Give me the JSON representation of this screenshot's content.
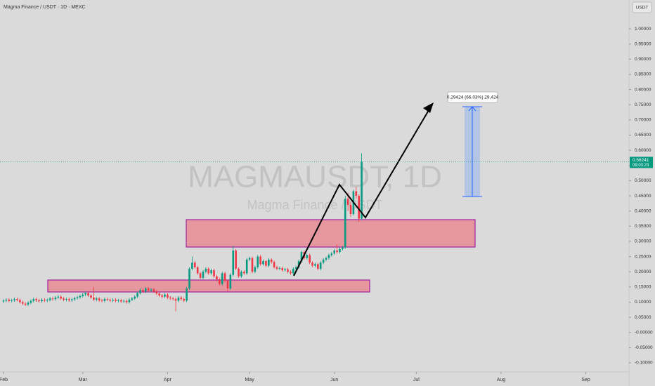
{
  "chart_data": {
    "type": "candlestick",
    "title": "Magma Finance / USDT · 1D · MEXC",
    "watermark": "MAGMAUSDT, 1D",
    "watermark_subtitle": "Magma Finance / USDT",
    "currency": "USDT",
    "measure_label": "0.29424 (66.03%) 29,424",
    "last_price": {
      "value": 0.56241,
      "label": "0.56241"
    },
    "countdown": "09:03:23",
    "up_color": "#089981",
    "down_color": "#f23645",
    "xlim": [
      -1.285,
      228.8
    ],
    "ylim": [
      -0.13,
      1.095
    ],
    "xticks": [
      {
        "value": 0,
        "label": "Feb"
      },
      {
        "value": 29,
        "label": "Mar"
      },
      {
        "value": 60,
        "label": "Apr"
      },
      {
        "value": 90,
        "label": "May"
      },
      {
        "value": 121,
        "label": "Jun"
      },
      {
        "value": 151,
        "label": "Jul"
      },
      {
        "value": 182,
        "label": "Aug"
      },
      {
        "value": 213,
        "label": "Sep"
      }
    ],
    "yticks": [
      {
        "value": 1.0,
        "label": "1.00000"
      },
      {
        "value": 0.95,
        "label": "0.95000"
      },
      {
        "value": 0.9,
        "label": "0.90000"
      },
      {
        "value": 0.85,
        "label": "0.85000"
      },
      {
        "value": 0.8,
        "label": "0.80000"
      },
      {
        "value": 0.75,
        "label": "0.75000"
      },
      {
        "value": 0.7,
        "label": "0.70000"
      },
      {
        "value": 0.65,
        "label": "0.65000"
      },
      {
        "value": 0.6,
        "label": "0.60000"
      },
      {
        "value": 0.55,
        "label": "0.55000"
      },
      {
        "value": 0.5,
        "label": "0.50000"
      },
      {
        "value": 0.45,
        "label": "0.45000"
      },
      {
        "value": 0.4,
        "label": "0.40000"
      },
      {
        "value": 0.35,
        "label": "0.35000"
      },
      {
        "value": 0.3,
        "label": "0.30000"
      },
      {
        "value": 0.25,
        "label": "0.25000"
      },
      {
        "value": 0.2,
        "label": "0.20000"
      },
      {
        "value": 0.15,
        "label": "0.15000"
      },
      {
        "value": 0.1,
        "label": "0.10000"
      },
      {
        "value": 0.05,
        "label": "0.05000"
      },
      {
        "value": 0,
        "label": "-0.00000"
      },
      {
        "value": -0.05,
        "label": "-0.05000"
      },
      {
        "value": -0.1,
        "label": "-0.10000"
      }
    ],
    "x": [
      0,
      1,
      2,
      3,
      4,
      5,
      6,
      7,
      8,
      9,
      10,
      11,
      12,
      13,
      14,
      15,
      16,
      17,
      18,
      19,
      20,
      21,
      22,
      23,
      24,
      25,
      26,
      27,
      28,
      29,
      30,
      31,
      32,
      33,
      34,
      35,
      36,
      37,
      38,
      39,
      40,
      41,
      42,
      43,
      44,
      45,
      46,
      47,
      48,
      49,
      50,
      51,
      52,
      53,
      54,
      55,
      56,
      57,
      58,
      59,
      60,
      61,
      62,
      63,
      64,
      65,
      66,
      67,
      68,
      69,
      70,
      71,
      72,
      73,
      74,
      75,
      76,
      77,
      78,
      79,
      80,
      81,
      82,
      83,
      84,
      85,
      86,
      87,
      88,
      89,
      90,
      91,
      92,
      93,
      94,
      95,
      96,
      97,
      98,
      99,
      100,
      101,
      102,
      103,
      104,
      105,
      106,
      107,
      108,
      109,
      110,
      111,
      112,
      113,
      114,
      115,
      116,
      117,
      118,
      119,
      120,
      121,
      122,
      123,
      124,
      125,
      126,
      127,
      128,
      129,
      130,
      131
    ],
    "open": [
      0.102,
      0.105,
      0.108,
      0.104,
      0.106,
      0.11,
      0.107,
      0.1,
      0.095,
      0.092,
      0.098,
      0.104,
      0.11,
      0.106,
      0.103,
      0.108,
      0.105,
      0.107,
      0.112,
      0.11,
      0.115,
      0.118,
      0.112,
      0.108,
      0.11,
      0.106,
      0.109,
      0.113,
      0.116,
      0.12,
      0.125,
      0.13,
      0.122,
      0.115,
      0.108,
      0.112,
      0.106,
      0.104,
      0.11,
      0.108,
      0.105,
      0.108,
      0.104,
      0.106,
      0.102,
      0.104,
      0.1,
      0.108,
      0.112,
      0.118,
      0.13,
      0.14,
      0.135,
      0.145,
      0.138,
      0.142,
      0.135,
      0.128,
      0.122,
      0.118,
      0.125,
      0.115,
      0.112,
      0.11,
      0.105,
      0.115,
      0.11,
      0.105,
      0.145,
      0.21,
      0.23,
      0.215,
      0.195,
      0.18,
      0.2,
      0.21,
      0.195,
      0.205,
      0.185,
      0.175,
      0.16,
      0.195,
      0.17,
      0.145,
      0.19,
      0.27,
      0.21,
      0.185,
      0.2,
      0.195,
      0.24,
      0.245,
      0.2,
      0.215,
      0.25,
      0.225,
      0.235,
      0.22,
      0.24,
      0.232,
      0.215,
      0.21,
      0.212,
      0.205,
      0.208,
      0.2,
      0.195,
      0.21,
      0.215,
      0.235,
      0.265,
      0.245,
      0.255,
      0.23,
      0.22,
      0.225,
      0.21,
      0.23,
      0.24,
      0.245,
      0.255,
      0.26,
      0.27,
      0.265,
      0.275,
      0.28,
      0.44,
      0.42,
      0.39,
      0.465,
      0.45,
      0.375
    ],
    "high": [
      0.11,
      0.113,
      0.113,
      0.111,
      0.115,
      0.115,
      0.112,
      0.105,
      0.1,
      0.103,
      0.109,
      0.115,
      0.115,
      0.111,
      0.113,
      0.113,
      0.112,
      0.117,
      0.117,
      0.12,
      0.123,
      0.123,
      0.117,
      0.115,
      0.115,
      0.114,
      0.118,
      0.121,
      0.125,
      0.13,
      0.135,
      0.135,
      0.127,
      0.15,
      0.117,
      0.117,
      0.111,
      0.115,
      0.115,
      0.113,
      0.113,
      0.113,
      0.111,
      0.111,
      0.109,
      0.109,
      0.113,
      0.117,
      0.123,
      0.135,
      0.145,
      0.145,
      0.15,
      0.15,
      0.147,
      0.147,
      0.14,
      0.133,
      0.127,
      0.13,
      0.13,
      0.12,
      0.117,
      0.115,
      0.12,
      0.12,
      0.115,
      0.15,
      0.215,
      0.25,
      0.235,
      0.22,
      0.2,
      0.205,
      0.215,
      0.215,
      0.21,
      0.21,
      0.19,
      0.18,
      0.2,
      0.2,
      0.175,
      0.195,
      0.285,
      0.275,
      0.215,
      0.205,
      0.205,
      0.245,
      0.25,
      0.25,
      0.22,
      0.255,
      0.255,
      0.24,
      0.24,
      0.245,
      0.245,
      0.237,
      0.22,
      0.217,
      0.217,
      0.213,
      0.213,
      0.205,
      0.215,
      0.22,
      0.24,
      0.27,
      0.27,
      0.26,
      0.26,
      0.235,
      0.23,
      0.23,
      0.235,
      0.245,
      0.25,
      0.26,
      0.265,
      0.275,
      0.29,
      0.28,
      0.285,
      0.45,
      0.46,
      0.43,
      0.47,
      0.48,
      0.455,
      0.59
    ],
    "low": [
      0.097,
      0.1,
      0.099,
      0.099,
      0.101,
      0.102,
      0.095,
      0.09,
      0.087,
      0.087,
      0.093,
      0.099,
      0.101,
      0.098,
      0.098,
      0.1,
      0.1,
      0.102,
      0.105,
      0.105,
      0.11,
      0.107,
      0.103,
      0.103,
      0.101,
      0.101,
      0.104,
      0.108,
      0.111,
      0.115,
      0.12,
      0.117,
      0.11,
      0.103,
      0.103,
      0.101,
      0.099,
      0.099,
      0.103,
      0.1,
      0.1,
      0.099,
      0.099,
      0.097,
      0.097,
      0.095,
      0.095,
      0.103,
      0.107,
      0.113,
      0.125,
      0.13,
      0.13,
      0.133,
      0.133,
      0.13,
      0.123,
      0.117,
      0.113,
      0.113,
      0.11,
      0.107,
      0.105,
      0.07,
      0.1,
      0.105,
      0.1,
      0.1,
      0.14,
      0.205,
      0.21,
      0.19,
      0.175,
      0.175,
      0.195,
      0.19,
      0.19,
      0.18,
      0.17,
      0.155,
      0.155,
      0.165,
      0.135,
      0.14,
      0.185,
      0.205,
      0.18,
      0.18,
      0.19,
      0.19,
      0.235,
      0.195,
      0.195,
      0.21,
      0.22,
      0.22,
      0.215,
      0.215,
      0.227,
      0.21,
      0.205,
      0.205,
      0.2,
      0.2,
      0.195,
      0.19,
      0.19,
      0.205,
      0.21,
      0.23,
      0.24,
      0.24,
      0.225,
      0.215,
      0.215,
      0.205,
      0.205,
      0.225,
      0.235,
      0.24,
      0.25,
      0.255,
      0.26,
      0.26,
      0.27,
      0.275,
      0.4,
      0.38,
      0.385,
      0.44,
      0.365,
      0.37
    ],
    "close": [
      0.105,
      0.108,
      0.104,
      0.106,
      0.11,
      0.107,
      0.1,
      0.095,
      0.092,
      0.098,
      0.104,
      0.11,
      0.106,
      0.103,
      0.108,
      0.105,
      0.107,
      0.112,
      0.11,
      0.115,
      0.118,
      0.112,
      0.108,
      0.11,
      0.106,
      0.109,
      0.113,
      0.116,
      0.12,
      0.125,
      0.13,
      0.122,
      0.115,
      0.108,
      0.112,
      0.106,
      0.104,
      0.11,
      0.108,
      0.105,
      0.108,
      0.104,
      0.106,
      0.102,
      0.104,
      0.1,
      0.108,
      0.112,
      0.118,
      0.13,
      0.14,
      0.135,
      0.145,
      0.138,
      0.142,
      0.135,
      0.128,
      0.122,
      0.118,
      0.125,
      0.115,
      0.112,
      0.11,
      0.105,
      0.115,
      0.11,
      0.105,
      0.145,
      0.21,
      0.23,
      0.215,
      0.195,
      0.18,
      0.2,
      0.21,
      0.195,
      0.205,
      0.185,
      0.175,
      0.16,
      0.195,
      0.17,
      0.145,
      0.19,
      0.27,
      0.21,
      0.185,
      0.2,
      0.195,
      0.24,
      0.245,
      0.2,
      0.215,
      0.25,
      0.225,
      0.235,
      0.22,
      0.24,
      0.232,
      0.215,
      0.21,
      0.212,
      0.205,
      0.208,
      0.2,
      0.195,
      0.21,
      0.215,
      0.235,
      0.265,
      0.245,
      0.255,
      0.23,
      0.22,
      0.225,
      0.21,
      0.23,
      0.24,
      0.245,
      0.255,
      0.26,
      0.27,
      0.265,
      0.275,
      0.28,
      0.44,
      0.42,
      0.39,
      0.465,
      0.45,
      0.375,
      0.562
    ]
  }
}
